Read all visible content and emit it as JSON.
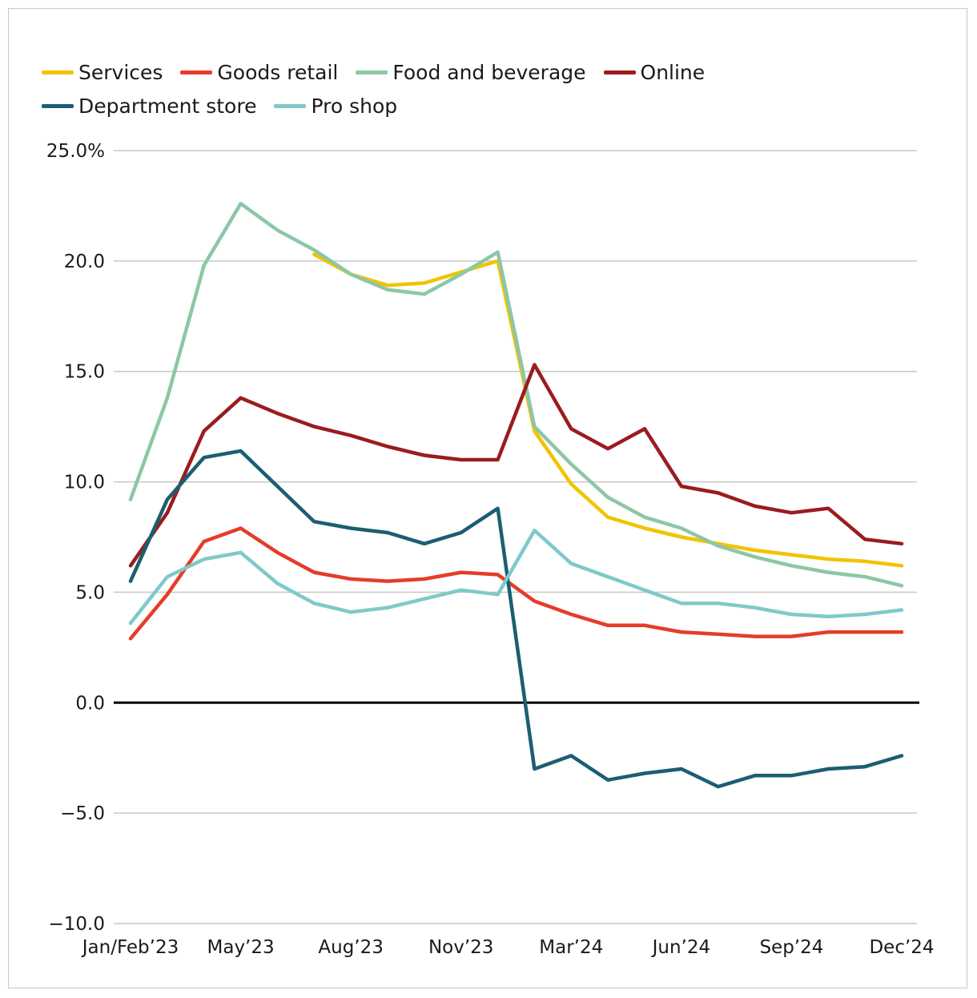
{
  "chart_data": {
    "type": "line",
    "title": "",
    "xlabel": "",
    "ylabel": "",
    "ylim": [
      -10,
      25
    ],
    "yticks": [
      -10,
      -5,
      0,
      5,
      10,
      15,
      20,
      25
    ],
    "ytick_labels": [
      "−10.0",
      "−5.0",
      "0.0",
      "5.0",
      "10.0",
      "15.0",
      "20.0",
      "25.0%"
    ],
    "x_tick_labels": [
      "Jan/Feb’23",
      "May’23",
      "Aug’23",
      "Nov’23",
      "Mar’24",
      "Jun’24",
      "Sep’24",
      "Dec’24"
    ],
    "x_tick_positions": [
      0,
      3,
      6,
      9,
      12,
      15,
      18,
      21
    ],
    "grid": true,
    "legend_position": "top",
    "series": [
      {
        "name": "Services",
        "color": "#f2c300",
        "values": [
          null,
          null,
          null,
          null,
          null,
          20.3,
          19.4,
          18.9,
          19.0,
          19.5,
          20.0,
          12.3,
          9.9,
          8.4,
          7.9,
          7.5,
          7.2,
          6.9,
          6.7,
          6.5,
          6.4,
          6.2
        ]
      },
      {
        "name": "Goods retail",
        "color": "#e63c2a",
        "values": [
          2.9,
          4.9,
          7.3,
          7.9,
          6.8,
          5.9,
          5.6,
          5.5,
          5.6,
          5.9,
          5.8,
          4.6,
          4.0,
          3.5,
          3.5,
          3.2,
          3.1,
          3.0,
          3.0,
          3.2,
          3.2,
          3.2
        ]
      },
      {
        "name": "Food and beverage",
        "color": "#8cc7a6",
        "values": [
          9.2,
          13.8,
          19.8,
          22.6,
          21.4,
          20.5,
          19.4,
          18.7,
          18.5,
          19.4,
          20.4,
          12.5,
          10.8,
          9.3,
          8.4,
          7.9,
          7.1,
          6.6,
          6.2,
          5.9,
          5.7,
          5.3
        ]
      },
      {
        "name": "Online",
        "color": "#9a1c1f",
        "values": [
          6.2,
          8.6,
          12.3,
          13.8,
          13.1,
          12.5,
          12.1,
          11.6,
          11.2,
          11.0,
          11.0,
          15.3,
          12.4,
          11.5,
          12.4,
          9.8,
          9.5,
          8.9,
          8.6,
          8.8,
          7.4,
          7.2
        ]
      },
      {
        "name": "Department store",
        "color": "#1b5e73",
        "values": [
          5.5,
          9.2,
          11.1,
          11.4,
          9.8,
          8.2,
          7.9,
          7.7,
          7.2,
          7.7,
          8.8,
          -3.0,
          -2.4,
          -3.5,
          -3.2,
          -3.0,
          -3.8,
          -3.3,
          -3.3,
          -3.0,
          -2.9,
          -2.4
        ]
      },
      {
        "name": "Pro shop",
        "color": "#7fc9c9",
        "values": [
          3.6,
          5.7,
          6.5,
          6.8,
          5.4,
          4.5,
          4.1,
          4.3,
          4.7,
          5.1,
          4.9,
          7.8,
          6.3,
          5.7,
          5.1,
          4.5,
          4.5,
          4.3,
          4.0,
          3.9,
          4.0,
          4.2
        ]
      }
    ]
  }
}
